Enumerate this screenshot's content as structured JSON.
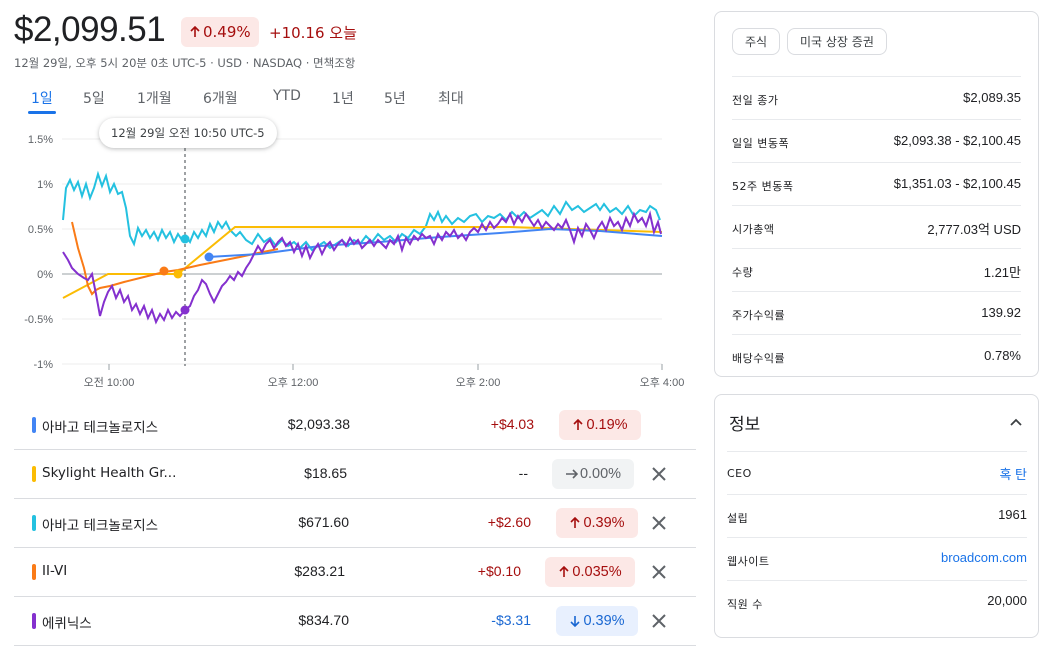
{
  "header": {
    "price": "$2,099.51",
    "change_pct": "0.49%",
    "change_abs": "+10.16 오늘",
    "meta": "12월 29일, 오후 5시 20분 0초 UTC-5 · USD · NASDAQ · 면책조항"
  },
  "tabs": [
    "1일",
    "5일",
    "1개월",
    "6개월",
    "YTD",
    "1년",
    "5년",
    "최대"
  ],
  "active_tab": "1일",
  "chart": {
    "tooltip": "12월 29일 오전 10:50 UTC-5",
    "y_ticks": [
      "1.5%",
      "1%",
      "0.5%",
      "0%",
      "-0.5%",
      "-1%"
    ],
    "x_ticks": [
      "오전 10:00",
      "오후 12:00",
      "오후 2:00",
      "오후 4:00"
    ]
  },
  "chart_data": {
    "type": "line",
    "ylim": [
      -1,
      1.5
    ],
    "y_unit": "%",
    "series_colors": [
      "#4285f4",
      "#fbbc04",
      "#24c1e0",
      "#fa7b17",
      "#8430ce"
    ]
  },
  "comparisons": [
    {
      "name": "아바고 테크놀로지스",
      "price": "$2,093.38",
      "abs": "+$4.03",
      "pct": "0.19%",
      "dir": "up",
      "color": "#4285f4",
      "removable": false
    },
    {
      "name": "Skylight Health Gr...",
      "price": "$18.65",
      "abs": "--",
      "pct": "0.00%",
      "dir": "flat",
      "color": "#fbbc04",
      "removable": true
    },
    {
      "name": "아바고 테크놀로지스",
      "price": "$671.60",
      "abs": "+$2.60",
      "pct": "0.39%",
      "dir": "up",
      "color": "#24c1e0",
      "removable": true
    },
    {
      "name": "II-VI",
      "price": "$283.21",
      "abs": "+$0.10",
      "pct": "0.035%",
      "dir": "up",
      "color": "#fa7b17",
      "removable": true
    },
    {
      "name": "에퀴닉스",
      "price": "$834.70",
      "abs": "-$3.31",
      "pct": "0.39%",
      "dir": "down",
      "color": "#8430ce",
      "removable": true
    }
  ],
  "stats_card": {
    "chips": [
      "주식",
      "미국 상장 증권"
    ],
    "rows": [
      {
        "label": "전일 종가",
        "value": "$2,089.35"
      },
      {
        "label": "일일 변동폭",
        "value": "$2,093.38 - $2,100.45"
      },
      {
        "label": "52주 변동폭",
        "value": "$1,351.03 - $2,100.45"
      },
      {
        "label": "시가총액",
        "value": "2,777.03억 USD"
      },
      {
        "label": "수량",
        "value": "1.21만"
      },
      {
        "label": "주가수익률",
        "value": "139.92"
      },
      {
        "label": "배당수익률",
        "value": "0.78%"
      }
    ]
  },
  "info_card": {
    "title": "정보",
    "rows": [
      {
        "label": "CEO",
        "value": "혹 탄",
        "link": true
      },
      {
        "label": "설립",
        "value": "1961",
        "link": false
      },
      {
        "label": "웹사이트",
        "value": "broadcom.com",
        "link": true
      },
      {
        "label": "직원 수",
        "value": "20,000",
        "link": false
      }
    ]
  }
}
